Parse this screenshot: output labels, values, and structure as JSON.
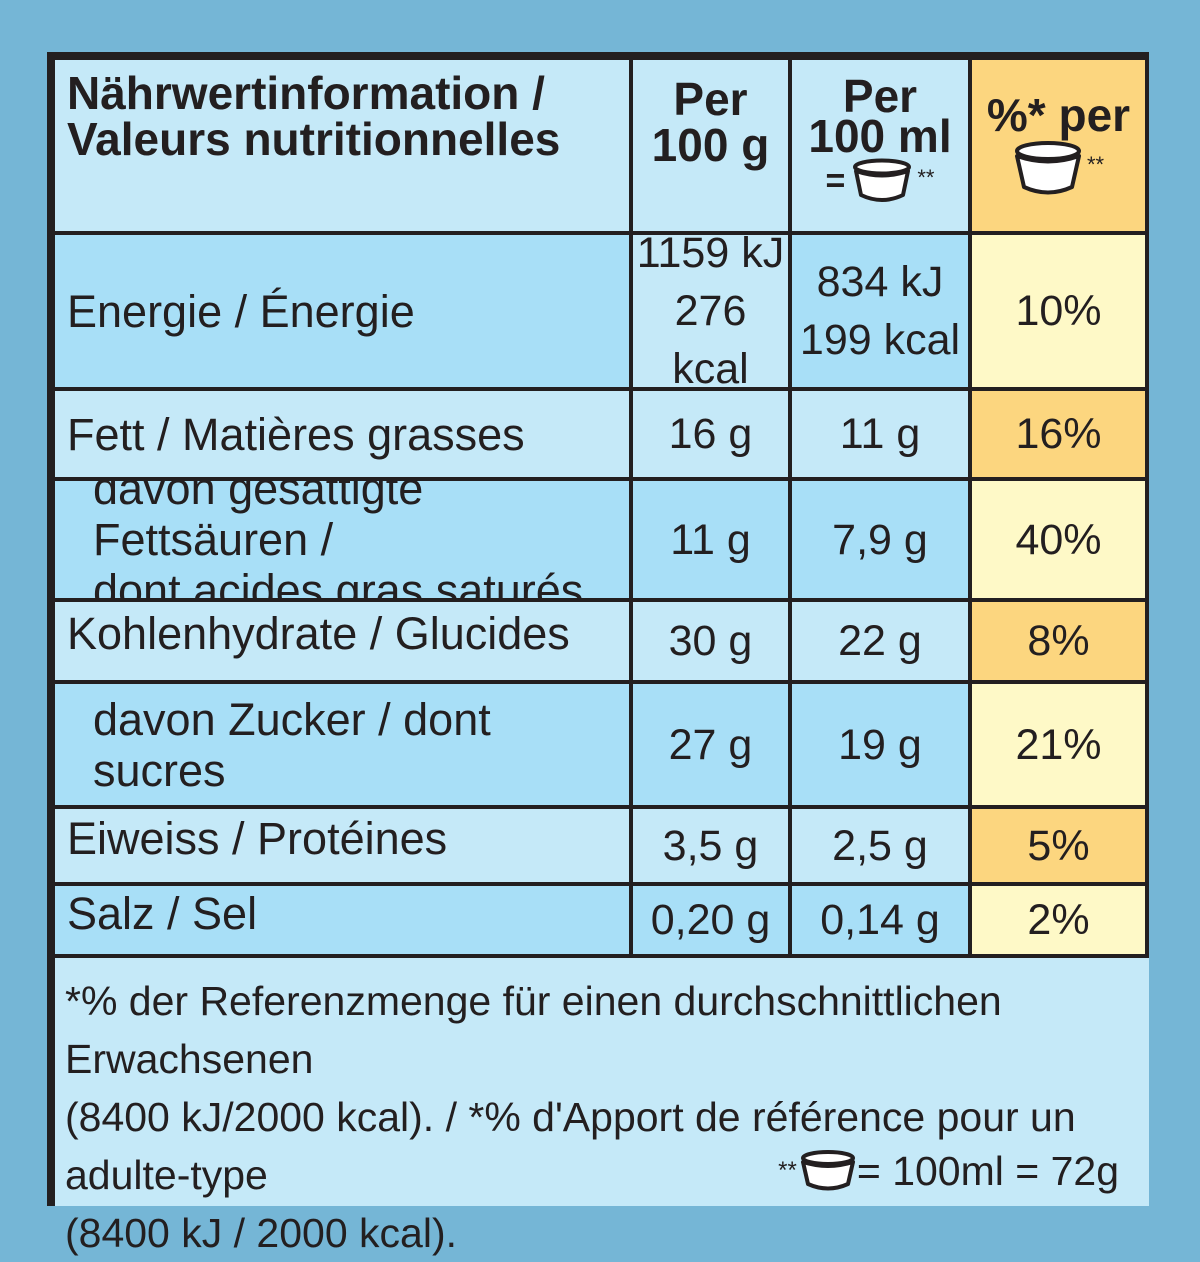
{
  "colors": {
    "background": "#75b6d6",
    "border": "#231f20",
    "pale_blue": "#c5e9f8",
    "bright_blue": "#a8dff7",
    "gold": "#fcd67f",
    "cream": "#fef9c7"
  },
  "header": {
    "title_line1": "Nährwertinformation /",
    "title_line2": "Valeurs nutritionnelles",
    "col1_line1": "Per",
    "col1_line2": "100 g",
    "col2_line1": "Per",
    "col2_line2": "100 ml",
    "col2_equals": "=",
    "col2_mark": "**",
    "col3_line1": "%* per",
    "col3_mark": "**",
    "cup_icon": "ice-cream-cup-icon"
  },
  "rows": [
    {
      "label": "Energie / Énergie",
      "per100g_line1": "1159 kJ",
      "per100g_line2": "276 kcal",
      "per100ml_line1": "834 kJ",
      "per100ml_line2": "199 kcal",
      "percent": "10%"
    },
    {
      "label": "Fett / Matières grasses",
      "per100g": "16 g",
      "per100ml": "11 g",
      "percent": "16%"
    },
    {
      "label_line1": "davon gesättigte Fettsäuren /",
      "label_line2": "dont acides gras saturés",
      "per100g": "11 g",
      "per100ml": "7,9 g",
      "percent": "40%"
    },
    {
      "label": "Kohlenhydrate / Glucides",
      "per100g": "30 g",
      "per100ml": "22 g",
      "percent": "8%"
    },
    {
      "label": "davon Zucker / dont sucres",
      "per100g": "27 g",
      "per100ml": "19 g",
      "percent": "21%"
    },
    {
      "label": "Eiweiss / Protéines",
      "per100g": "3,5 g",
      "per100ml": "2,5 g",
      "percent": "5%"
    },
    {
      "label": "Salz / Sel",
      "per100g": "0,20 g",
      "per100ml": "0,14 g",
      "percent": "2%"
    }
  ],
  "footer": {
    "line1": "*% der Referenzmenge für einen durchschnittlichen Erwachsenen",
    "line2": "(8400 kJ/2000 kcal). / *% d'Apport de référence pour un adulte-type",
    "line3": "(8400 kJ / 2000 kcal).",
    "note_mark": "**",
    "note_text": "= 100ml = 72g"
  }
}
